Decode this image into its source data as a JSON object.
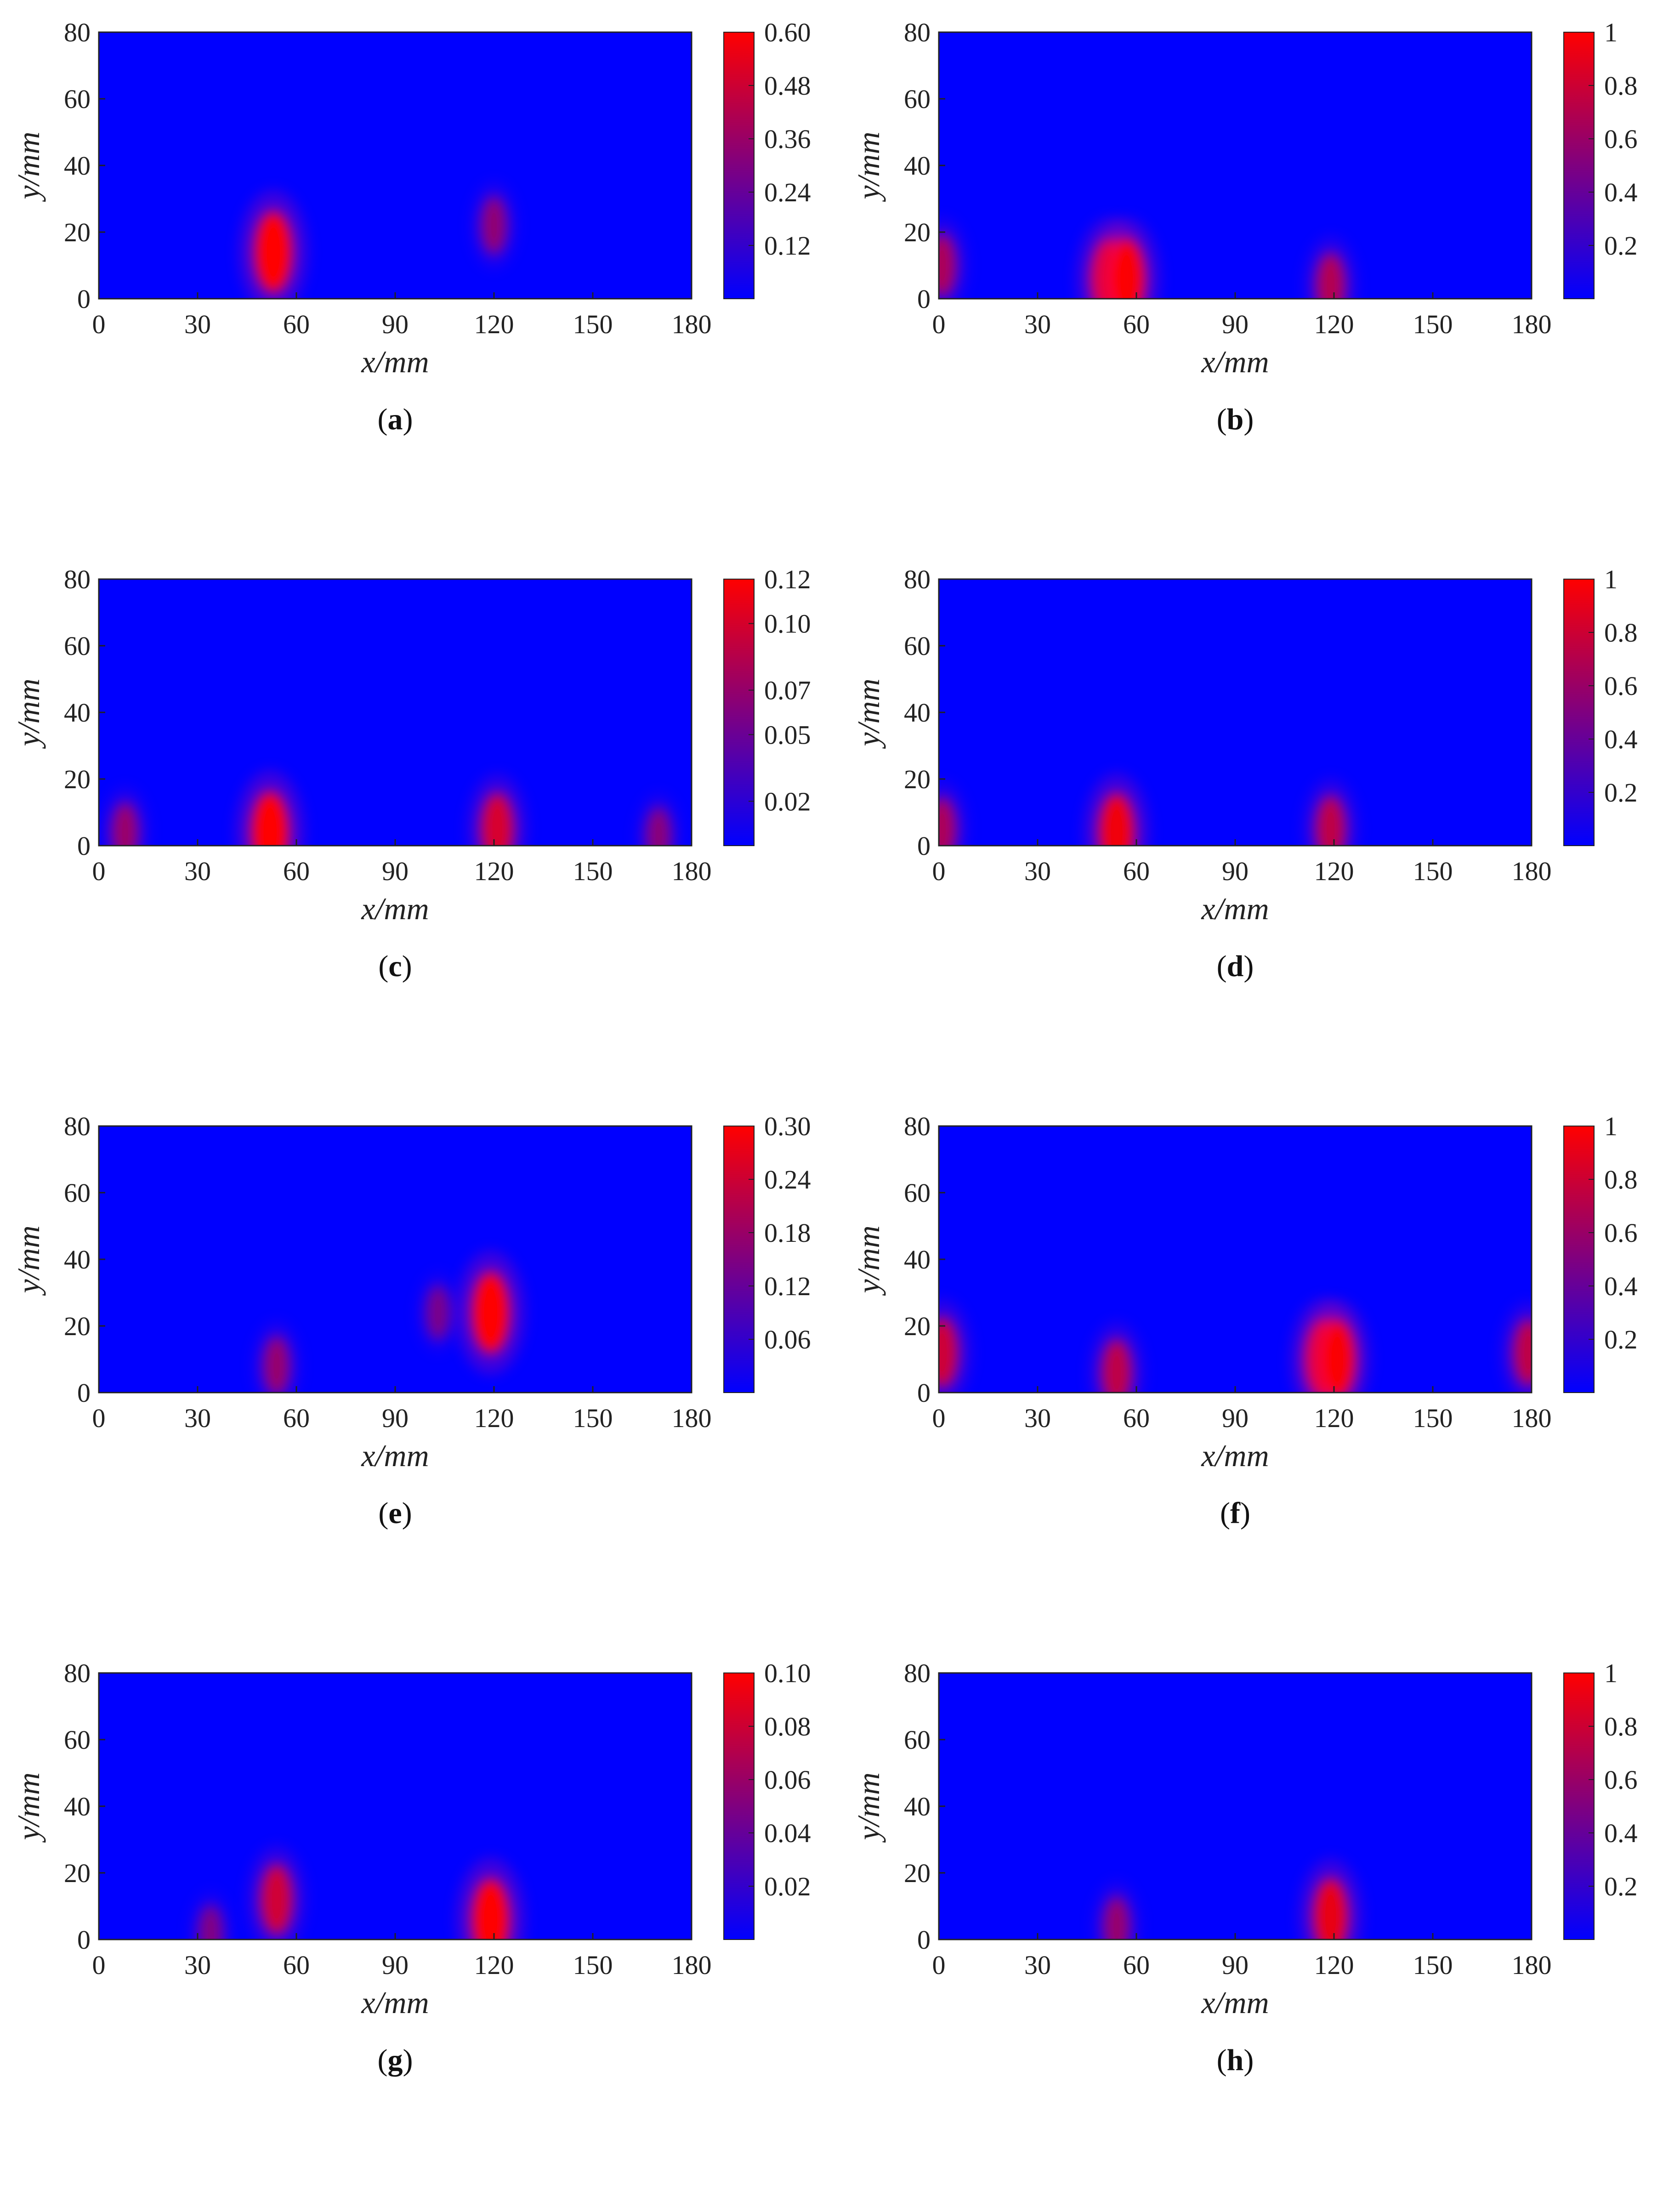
{
  "chart_data": [
    {
      "type": "heatmap",
      "panel_label": "a",
      "xlabel": "x/mm",
      "ylabel": "y/mm",
      "xlim": [
        0,
        180
      ],
      "ylim": [
        0,
        80
      ],
      "xticks": [
        "0",
        "30",
        "60",
        "90",
        "120",
        "150",
        "180"
      ],
      "yticks": [
        "0",
        "20",
        "40",
        "60",
        "80"
      ],
      "colorbar": {
        "min": 0,
        "max": 0.6,
        "ticks": [
          0.12,
          0.24,
          0.36,
          0.48,
          0.6
        ],
        "tick_labels": [
          "0.12",
          "0.24",
          "0.36",
          "0.48",
          "0.60"
        ]
      },
      "hotspots": [
        {
          "x": 53,
          "y": 14,
          "value": 0.6
        },
        {
          "x": 120,
          "y": 22,
          "value": 0.22
        }
      ]
    },
    {
      "type": "heatmap",
      "panel_label": "b",
      "xlabel": "x/mm",
      "ylabel": "y/mm",
      "xlim": [
        0,
        180
      ],
      "ylim": [
        0,
        80
      ],
      "xticks": [
        "0",
        "30",
        "60",
        "90",
        "120",
        "150",
        "180"
      ],
      "yticks": [
        "0",
        "20",
        "40",
        "60",
        "80"
      ],
      "colorbar": {
        "min": 0,
        "max": 1,
        "ticks": [
          0.2,
          0.4,
          0.6,
          0.8,
          1
        ],
        "tick_labels": [
          "0.2",
          "0.4",
          "0.6",
          "0.8",
          "1"
        ]
      },
      "hotspots": [
        {
          "x": 52,
          "y": 6,
          "value": 0.95
        },
        {
          "x": 57,
          "y": 6,
          "value": 0.95
        },
        {
          "x": 119,
          "y": 4,
          "value": 0.55
        },
        {
          "x": 1,
          "y": 10,
          "value": 0.5
        }
      ]
    },
    {
      "type": "heatmap",
      "panel_label": "c",
      "xlabel": "x/mm",
      "ylabel": "y/mm",
      "xlim": [
        0,
        180
      ],
      "ylim": [
        0,
        80
      ],
      "xticks": [
        "0",
        "30",
        "60",
        "90",
        "120",
        "150",
        "180"
      ],
      "yticks": [
        "0",
        "20",
        "40",
        "60",
        "80"
      ],
      "colorbar": {
        "min": 0,
        "max": 0.12,
        "ticks": [
          0.02,
          0.05,
          0.07,
          0.1,
          0.12
        ],
        "tick_labels": [
          "0.02",
          "0.05",
          "0.07",
          "0.10",
          "0.12"
        ]
      },
      "hotspots": [
        {
          "x": 52,
          "y": 4,
          "value": 0.12
        },
        {
          "x": 121,
          "y": 5,
          "value": 0.09
        },
        {
          "x": 8,
          "y": 4,
          "value": 0.05
        },
        {
          "x": 170,
          "y": 3,
          "value": 0.04
        }
      ]
    },
    {
      "type": "heatmap",
      "panel_label": "d",
      "xlabel": "x/mm",
      "ylabel": "y/mm",
      "xlim": [
        0,
        180
      ],
      "ylim": [
        0,
        80
      ],
      "xticks": [
        "0",
        "30",
        "60",
        "90",
        "120",
        "150",
        "180"
      ],
      "yticks": [
        "0",
        "20",
        "40",
        "60",
        "80"
      ],
      "colorbar": {
        "min": 0,
        "max": 1,
        "ticks": [
          0.2,
          0.4,
          0.6,
          0.8,
          1
        ],
        "tick_labels": [
          "0.2",
          "0.4",
          "0.6",
          "0.8",
          "1"
        ]
      },
      "hotspots": [
        {
          "x": 54,
          "y": 4,
          "value": 0.9
        },
        {
          "x": 119,
          "y": 5,
          "value": 0.6
        },
        {
          "x": 1,
          "y": 5,
          "value": 0.5
        }
      ]
    },
    {
      "type": "heatmap",
      "panel_label": "e",
      "xlabel": "x/mm",
      "ylabel": "y/mm",
      "xlim": [
        0,
        180
      ],
      "ylim": [
        0,
        80
      ],
      "xticks": [
        "0",
        "30",
        "60",
        "90",
        "120",
        "150",
        "180"
      ],
      "yticks": [
        "0",
        "20",
        "40",
        "60",
        "80"
      ],
      "colorbar": {
        "min": 0,
        "max": 0.3,
        "ticks": [
          0.06,
          0.12,
          0.18,
          0.24,
          0.3
        ],
        "tick_labels": [
          "0.06",
          "0.12",
          "0.18",
          "0.24",
          "0.30"
        ]
      },
      "hotspots": [
        {
          "x": 119,
          "y": 24,
          "value": 0.3
        },
        {
          "x": 54,
          "y": 8,
          "value": 0.12
        },
        {
          "x": 103,
          "y": 24,
          "value": 0.08
        }
      ]
    },
    {
      "type": "heatmap",
      "panel_label": "f",
      "xlabel": "x/mm",
      "ylabel": "y/mm",
      "xlim": [
        0,
        180
      ],
      "ylim": [
        0,
        80
      ],
      "xticks": [
        "0",
        "30",
        "60",
        "90",
        "120",
        "150",
        "180"
      ],
      "yticks": [
        "0",
        "20",
        "40",
        "60",
        "80"
      ],
      "colorbar": {
        "min": 0,
        "max": 1,
        "ticks": [
          0.2,
          0.4,
          0.6,
          0.8,
          1
        ],
        "tick_labels": [
          "0.2",
          "0.4",
          "0.6",
          "0.8",
          "1"
        ]
      },
      "hotspots": [
        {
          "x": 117,
          "y": 10,
          "value": 0.95
        },
        {
          "x": 121,
          "y": 10,
          "value": 0.9
        },
        {
          "x": 54,
          "y": 6,
          "value": 0.6
        },
        {
          "x": 1,
          "y": 12,
          "value": 0.7
        },
        {
          "x": 179,
          "y": 12,
          "value": 0.6
        }
      ]
    },
    {
      "type": "heatmap",
      "panel_label": "g",
      "xlabel": "x/mm",
      "ylabel": "y/mm",
      "xlim": [
        0,
        180
      ],
      "ylim": [
        0,
        80
      ],
      "xticks": [
        "0",
        "30",
        "60",
        "90",
        "120",
        "150",
        "180"
      ],
      "yticks": [
        "0",
        "20",
        "40",
        "60",
        "80"
      ],
      "colorbar": {
        "min": 0,
        "max": 0.1,
        "ticks": [
          0.02,
          0.04,
          0.06,
          0.08,
          0.1
        ],
        "tick_labels": [
          "0.02",
          "0.04",
          "0.06",
          "0.08",
          "0.10"
        ]
      },
      "hotspots": [
        {
          "x": 119,
          "y": 6,
          "value": 0.1
        },
        {
          "x": 54,
          "y": 12,
          "value": 0.07
        },
        {
          "x": 34,
          "y": 2,
          "value": 0.03
        }
      ]
    },
    {
      "type": "heatmap",
      "panel_label": "h",
      "xlabel": "x/mm",
      "ylabel": "y/mm",
      "xlim": [
        0,
        180
      ],
      "ylim": [
        0,
        80
      ],
      "xticks": [
        "0",
        "30",
        "60",
        "90",
        "120",
        "150",
        "180"
      ],
      "yticks": [
        "0",
        "20",
        "40",
        "60",
        "80"
      ],
      "colorbar": {
        "min": 0,
        "max": 1,
        "ticks": [
          0.2,
          0.4,
          0.6,
          0.8,
          1
        ],
        "tick_labels": [
          "0.2",
          "0.4",
          "0.6",
          "0.8",
          "1"
        ]
      },
      "hotspots": [
        {
          "x": 119,
          "y": 7,
          "value": 0.85
        },
        {
          "x": 54,
          "y": 4,
          "value": 0.4
        }
      ]
    }
  ],
  "colors": {
    "low": "#0000ff",
    "high": "#ff0000"
  }
}
